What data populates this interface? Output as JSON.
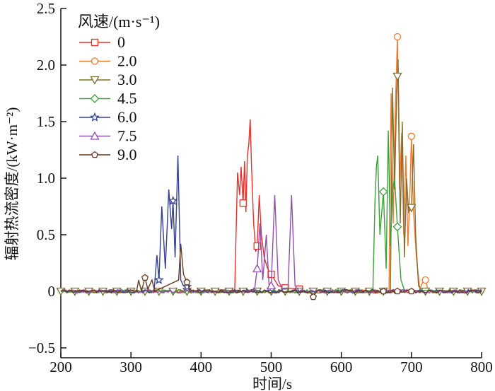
{
  "chart_data": {
    "type": "line",
    "title": "",
    "xlabel": "时间/s",
    "ylabel": "辐射热流密度/(kW·m⁻²)",
    "xlim": [
      200,
      800
    ],
    "ylim": [
      -0.5,
      2.5
    ],
    "xticks": [
      "200",
      "300",
      "400",
      "500",
      "600",
      "700",
      "800"
    ],
    "yticks": [
      "−0.5",
      "0",
      "0.5",
      "1.0",
      "1.5",
      "2.0",
      "2.5"
    ],
    "legend_title": "风速/(m·s⁻¹)",
    "legend_placement": "top-left",
    "series": [
      {
        "name": "0",
        "color": "#e8302a",
        "marker": "square",
        "points": [
          [
            200,
            0
          ],
          [
            448,
            0
          ],
          [
            452,
            1.05
          ],
          [
            455,
            0.85
          ],
          [
            457,
            1.1
          ],
          [
            460,
            0.78
          ],
          [
            462,
            1.15
          ],
          [
            464,
            0.7
          ],
          [
            466,
            1.2
          ],
          [
            468,
            1.3
          ],
          [
            470,
            1.52
          ],
          [
            472,
            1.1
          ],
          [
            475,
            0.6
          ],
          [
            478,
            0.35
          ],
          [
            480,
            0.4
          ],
          [
            483,
            0.85
          ],
          [
            486,
            0.5
          ],
          [
            490,
            0.3
          ],
          [
            495,
            0.2
          ],
          [
            500,
            0.15
          ],
          [
            505,
            0.1
          ],
          [
            510,
            0.05
          ],
          [
            520,
            0.03
          ],
          [
            540,
            0.02
          ],
          [
            550,
            0
          ],
          [
            800,
            0
          ]
        ],
        "markers": [
          460,
          480,
          500,
          520,
          540
        ]
      },
      {
        "name": "2.0",
        "color": "#f07a30",
        "marker": "circle",
        "points": [
          [
            200,
            0
          ],
          [
            668,
            0
          ],
          [
            671,
            1.75
          ],
          [
            674,
            0.6
          ],
          [
            677,
            1.6
          ],
          [
            680,
            2.25
          ],
          [
            683,
            0.9
          ],
          [
            686,
            1.4
          ],
          [
            689,
            0.5
          ],
          [
            692,
            1.2
          ],
          [
            695,
            0.4
          ],
          [
            698,
            0.9
          ],
          [
            700,
            1.37
          ],
          [
            703,
            0.7
          ],
          [
            707,
            0.3
          ],
          [
            712,
            0.02
          ],
          [
            716,
            0.08
          ],
          [
            720,
            0.1
          ],
          [
            724,
            0
          ],
          [
            800,
            0
          ]
        ],
        "markers": [
          680,
          700,
          720
        ]
      },
      {
        "name": "3.0",
        "color": "#7d7030",
        "marker": "triangle-down",
        "points": [
          [
            200,
            0
          ],
          [
            670,
            0
          ],
          [
            673,
            1.8
          ],
          [
            676,
            0.9
          ],
          [
            679,
            1.75
          ],
          [
            681,
            2.05
          ],
          [
            684,
            0.6
          ],
          [
            687,
            1.5
          ],
          [
            690,
            0.3
          ],
          [
            693,
            1.0
          ],
          [
            696,
            0.7
          ],
          [
            700,
            0.74
          ],
          [
            703,
            1.3
          ],
          [
            706,
            0.5
          ],
          [
            710,
            0.05
          ],
          [
            715,
            0
          ],
          [
            800,
            0
          ]
        ],
        "markers": [
          200,
          220,
          240,
          260,
          280,
          300,
          320,
          340,
          360,
          380,
          400,
          420,
          440,
          460,
          480,
          500,
          520,
          540,
          560,
          580,
          600,
          620,
          640,
          660,
          680,
          700,
          720,
          740,
          760,
          780,
          800
        ]
      },
      {
        "name": "4.5",
        "color": "#3da03a",
        "marker": "diamond",
        "points": [
          [
            200,
            0
          ],
          [
            645,
            0
          ],
          [
            648,
            0.8
          ],
          [
            650,
            1.1
          ],
          [
            652,
            1.2
          ],
          [
            655,
            0.5
          ],
          [
            660,
            0.88
          ],
          [
            664,
            0.2
          ],
          [
            667,
            1.42
          ],
          [
            670,
            0.4
          ],
          [
            673,
            0.9
          ],
          [
            676,
            1.0
          ],
          [
            680,
            0.57
          ],
          [
            685,
            0.1
          ],
          [
            690,
            0.01
          ],
          [
            800,
            0
          ]
        ],
        "markers": [
          660,
          680
        ]
      },
      {
        "name": "6.0",
        "color": "#34408f",
        "marker": "star",
        "points": [
          [
            200,
            0
          ],
          [
            333,
            0
          ],
          [
            337,
            0.32
          ],
          [
            340,
            0.1
          ],
          [
            344,
            0.75
          ],
          [
            349,
            0.2
          ],
          [
            354,
            0.9
          ],
          [
            358,
            0.55
          ],
          [
            360,
            0.8
          ],
          [
            363,
            0.3
          ],
          [
            367,
            1.2
          ],
          [
            371,
            0.1
          ],
          [
            375,
            0.05
          ],
          [
            380,
            0.04
          ],
          [
            385,
            0
          ],
          [
            800,
            0
          ]
        ],
        "markers": [
          340,
          360,
          380
        ]
      },
      {
        "name": "7.5",
        "color": "#9050a8",
        "marker": "triangle-up",
        "points": [
          [
            200,
            0
          ],
          [
            476,
            0
          ],
          [
            480,
            0.2
          ],
          [
            484,
            0.6
          ],
          [
            488,
            0.1
          ],
          [
            493,
            0.5
          ],
          [
            497,
            0.05
          ],
          [
            500,
            0.05
          ],
          [
            505,
            0.85
          ],
          [
            510,
            0.1
          ],
          [
            516,
            0.02
          ],
          [
            524,
            0.02
          ],
          [
            529,
            0.85
          ],
          [
            534,
            0.05
          ],
          [
            540,
            0
          ],
          [
            800,
            0
          ]
        ],
        "markers": [
          480,
          500
        ]
      },
      {
        "name": "9.0",
        "color": "#6a3a20",
        "marker": "pentagon",
        "points": [
          [
            200,
            0
          ],
          [
            308,
            0
          ],
          [
            311,
            0.1
          ],
          [
            315,
            0.0
          ],
          [
            320,
            0.12
          ],
          [
            324,
            0.02
          ],
          [
            330,
            0.1
          ],
          [
            334,
            0
          ],
          [
            368,
            0.1
          ],
          [
            371,
            0.42
          ],
          [
            375,
            0.15
          ],
          [
            380,
            0.08
          ],
          [
            385,
            0
          ],
          [
            555,
            0
          ],
          [
            560,
            -0.05
          ],
          [
            565,
            0
          ],
          [
            800,
            0
          ]
        ],
        "markers": [
          320,
          380,
          560,
          660,
          680,
          700
        ]
      }
    ]
  }
}
